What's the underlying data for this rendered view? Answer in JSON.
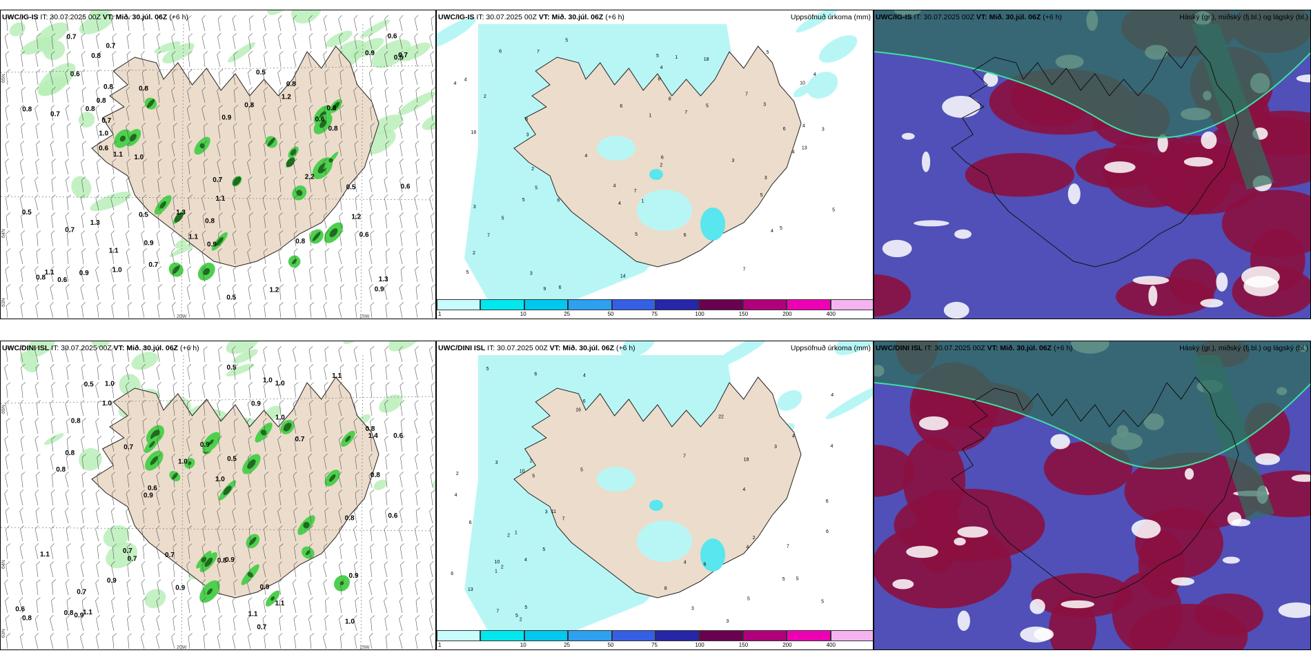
{
  "rows": [
    {
      "model": "UWC/IG-IS",
      "it": "IT: 30.07.2025 00Z",
      "vt_label": "VT:",
      "vt": "Mið. 30.júl. 06Z",
      "lead": "(+6 h)",
      "precip_title": "Uppsöfnuð úrkoma (mm)",
      "cloud_title": "Háský (gr.), miðský (fj.bl.) og lágský (bl.)",
      "lat_lon": {
        "lat65": "65N",
        "lat64": "64N",
        "lat63": "63N",
        "lon20": "20W",
        "lon15": "15W"
      },
      "wind_labels": [
        "0.8",
        "0.7",
        "0.9",
        "1.1",
        "0.7",
        "1.3",
        "0.7",
        "1.1",
        "0.5",
        "0.8",
        "0.5",
        "1.1",
        "0.8",
        "1.2",
        "0.8",
        "0.5",
        "0.7",
        "1.2",
        "0.6",
        "0.9",
        "1.3",
        "0.5",
        "1.0",
        "0.6",
        "0.7",
        "0.8",
        "0.6",
        "0.9",
        "0.7",
        "0.9",
        "1.1",
        "0.8",
        "0.7",
        "1.0",
        "1.2",
        "0.6",
        "0.8",
        "0.7",
        "0.6",
        "0.8",
        "0.9",
        "0.8",
        "0.8",
        "1.3",
        "0.8",
        "0.6",
        "0.8",
        "0.8",
        "0.5",
        "0.9",
        "1.1",
        "0.5",
        "2.2",
        "0.6",
        "1.0"
      ],
      "precip_numbers": [
        "8",
        "4",
        "5",
        "6",
        "4",
        "1",
        "10",
        "6",
        "5",
        "7",
        "4",
        "5",
        "5",
        "5",
        "13",
        "3",
        "4",
        "3",
        "7",
        "5",
        "4",
        "3",
        "4",
        "5",
        "3",
        "4",
        "5",
        "7",
        "6",
        "2",
        "8",
        "4",
        "3",
        "7",
        "5",
        "5",
        "6",
        "4",
        "16",
        "5",
        "6",
        "2",
        "1",
        "6",
        "7",
        "18",
        "14",
        "4",
        "5",
        "1",
        "2",
        "3",
        "6",
        "3",
        "9",
        "7",
        "8",
        "2"
      ]
    },
    {
      "model": "UWC/DINI ISL",
      "it": "IT: 30.07.2025 00Z",
      "vt_label": "VT:",
      "vt": "Mið. 30.júl. 06Z",
      "lead": "(+6 h)",
      "precip_title": "Uppsöfnuð úrkoma (mm)",
      "cloud_title": "Háský (gr.), miðský (fj.bl.) og lágský (bl.)",
      "lat_lon": {
        "lat65": "65N",
        "lat64": "64N",
        "lat63": "63N",
        "lon20": "20W",
        "lon15": "15W"
      },
      "wind_labels": [
        "0.6",
        "0.9",
        "1.0",
        "0.7",
        "1.0",
        "0.8",
        "0.8",
        "0.9",
        "1.1",
        "0.7",
        "1.1",
        "0.7",
        "0.7",
        "1.0",
        "0.9",
        "1.0",
        "1.1",
        "0.9",
        "0.8",
        "0.6",
        "0.9",
        "0.8",
        "0.6",
        "0.8",
        "0.5",
        "0.5",
        "1.0",
        "0.9",
        "1.1",
        "0.8",
        "1.0",
        "0.7",
        "0.7",
        "0.8",
        "0.6",
        "0.7",
        "0.9",
        "1.0",
        "1.0",
        "0.8",
        "0.9",
        "0.8",
        "1.4",
        "0.9",
        "1.1",
        "0.5"
      ],
      "precip_numbers": [
        "10",
        "5",
        "6",
        "7",
        "5",
        "6",
        "10",
        "4",
        "5",
        "6",
        "4",
        "5",
        "4",
        "13",
        "11",
        "4",
        "3",
        "5",
        "6",
        "4",
        "5",
        "7",
        "2",
        "4",
        "5",
        "6",
        "3",
        "4",
        "5",
        "3",
        "18",
        "4",
        "2",
        "5",
        "7",
        "22",
        "16",
        "5",
        "6",
        "3",
        "2",
        "7",
        "4",
        "1",
        "2",
        "2",
        "3",
        "6",
        "8",
        "2",
        "1"
      ]
    }
  ],
  "colorbar": {
    "ticks": [
      "1",
      "10",
      "25",
      "50",
      "75",
      "100",
      "150",
      "200",
      "400"
    ],
    "colors": [
      "#c8fbfb",
      "#00e8ee",
      "#00c8ee",
      "#2ea0f0",
      "#3560e6",
      "#2626a8",
      "#6a0050",
      "#b0007c",
      "#ee00b4",
      "#f4b4f0"
    ]
  },
  "colors": {
    "land": "#ecdccb",
    "green_light": "#b8efb8",
    "green_mid": "#4fcf4f",
    "green_dark": "#1f6b1f",
    "precip_light": "#b8f6f6",
    "precip_mid": "#59e6ee",
    "cloud_high": "#2f6f5f",
    "cloud_mid": "#8b1040",
    "cloud_low": "#5050b8"
  }
}
